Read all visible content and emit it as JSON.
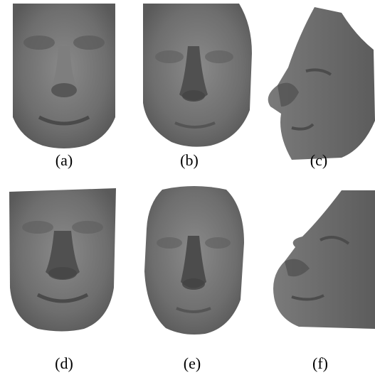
{
  "figure": {
    "panels": [
      {
        "label": "(a)",
        "icon": "frontal-face-render-icon"
      },
      {
        "label": "(b)",
        "icon": "frontal-face-render-icon"
      },
      {
        "label": "(c)",
        "icon": "profile-face-render-icon"
      },
      {
        "label": "(d)",
        "icon": "frontal-face-render-icon"
      },
      {
        "label": "(e)",
        "icon": "frontal-face-render-icon"
      },
      {
        "label": "(f)",
        "icon": "profile-face-render-icon"
      }
    ],
    "colors": {
      "background": "#ffffff",
      "surface": "#6e6e6e",
      "shadow": "#4a4a4a",
      "highlight": "#8c8c8c"
    }
  }
}
